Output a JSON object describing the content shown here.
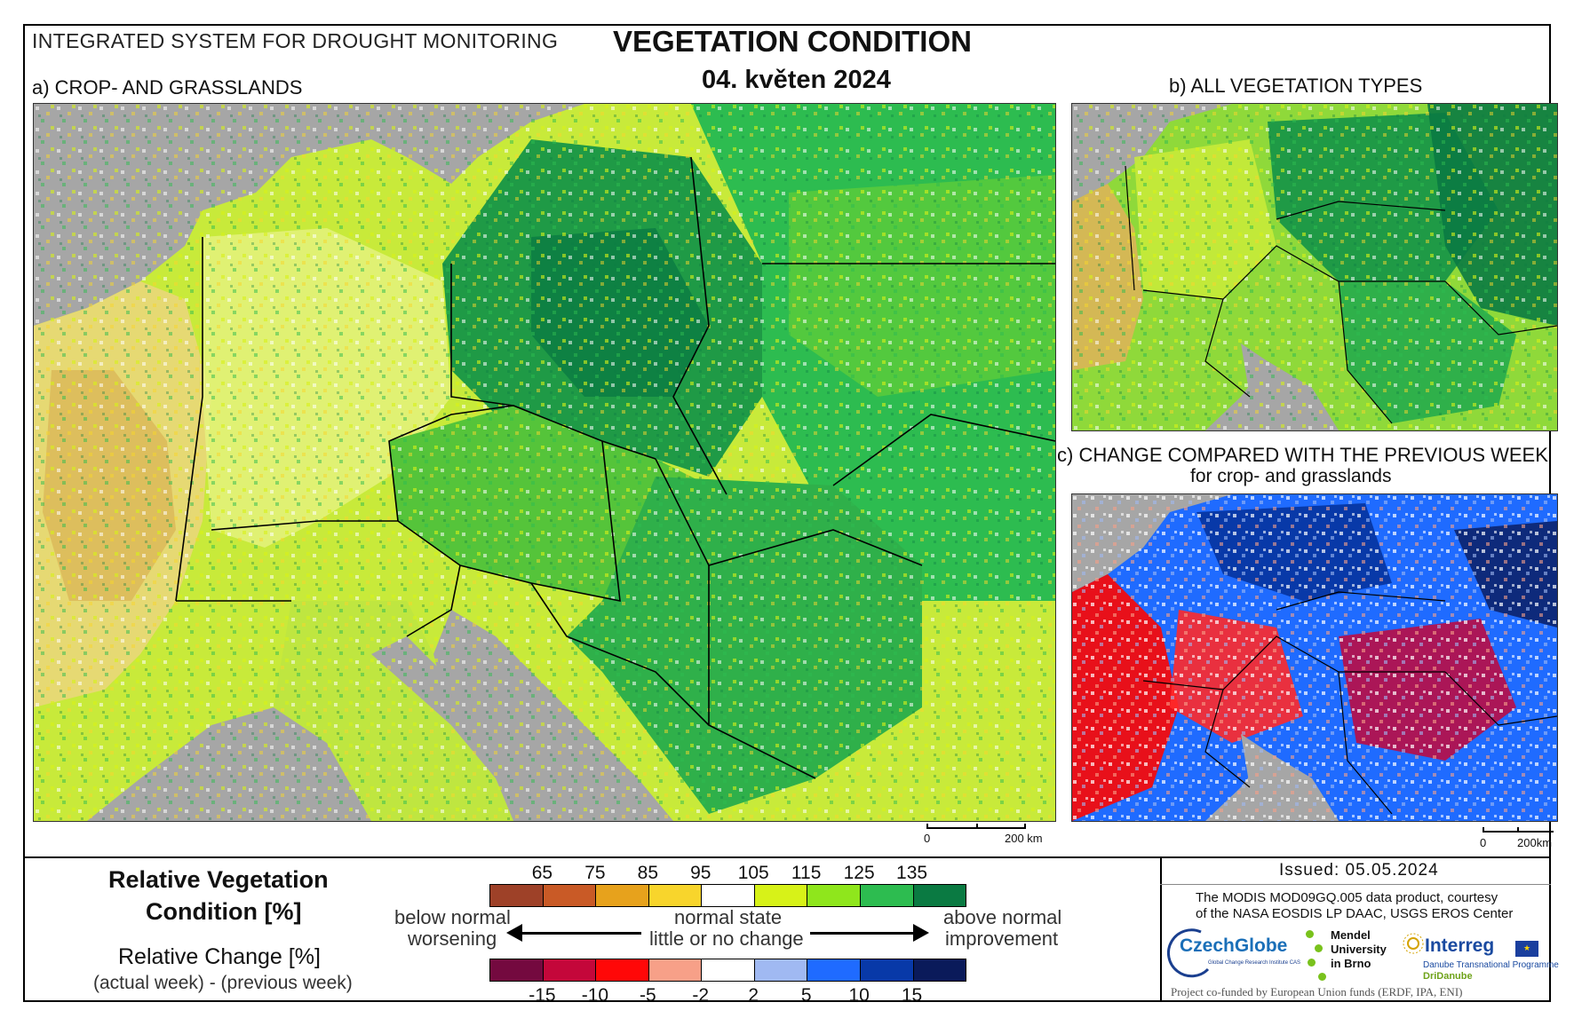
{
  "header": {
    "system_title": "INTEGRATED SYSTEM FOR DROUGHT MONITORING",
    "main_title": "VEGETATION CONDITION",
    "date": "04. květen 2024"
  },
  "panels": {
    "a_title": "a) CROP- AND GRASSLANDS",
    "b_title": "b) ALL VEGETATION TYPES",
    "c_title": "c) CHANGE COMPARED WITH THE PREVIOUS WEEK",
    "c_subtitle": "for crop- and grasslands",
    "a_scale": {
      "zero": "0",
      "label": "200 km"
    },
    "c_scale": {
      "zero": "0",
      "label": "200km"
    }
  },
  "legend": {
    "rvc_title_line1": "Relative Vegetation",
    "rvc_title_line2": "Condition [%]",
    "rc_title": "Relative Change [%]",
    "rc_subtitle": "(actual week) - (previous week)",
    "rvc_ticks": [
      "65",
      "75",
      "85",
      "95",
      "105",
      "115",
      "125",
      "135"
    ],
    "rvc_colors": [
      "#9e4128",
      "#c95a26",
      "#e7a21c",
      "#f8d52c",
      "#ffffff",
      "#d7f218",
      "#8fe61c",
      "#2dbc50",
      "#0a7a42"
    ],
    "rc_ticks": [
      "-15",
      "-10",
      "-5",
      "-2",
      "2",
      "5",
      "10",
      "15"
    ],
    "rc_colors": [
      "#74093f",
      "#c4073a",
      "#ff0808",
      "#f7a088",
      "#ffffff",
      "#a0b9f2",
      "#1f6bff",
      "#0839a8",
      "#0a1a5a"
    ],
    "left_label_top": "below normal",
    "left_label_bottom": "worsening",
    "center_label_top": "normal state",
    "center_label_bottom": "little or no change",
    "right_label_top": "above normal",
    "right_label_bottom": "improvement"
  },
  "credits": {
    "issued": "Issued: 05.05.2024",
    "line1": "The MODIS MOD09GQ.005 data product, courtesy",
    "line2": "of the NASA EOSDIS LP DAAC, USGS EROS Center",
    "czechglobe": "CzechGlobe",
    "czechglobe_sub": "Global Change Research Institute CAS",
    "mendel_1": "Mendel",
    "mendel_2": "University",
    "mendel_3": "in Brno",
    "interreg": "Interreg",
    "interreg_sub": "Danube Transnational Programme",
    "dridanube": "DriDanube",
    "funding": "Project co-funded by European Union funds (ERDF, IPA, ENI)"
  },
  "colors": {
    "sea": "#a6a6a6",
    "border_line": "#000000"
  }
}
